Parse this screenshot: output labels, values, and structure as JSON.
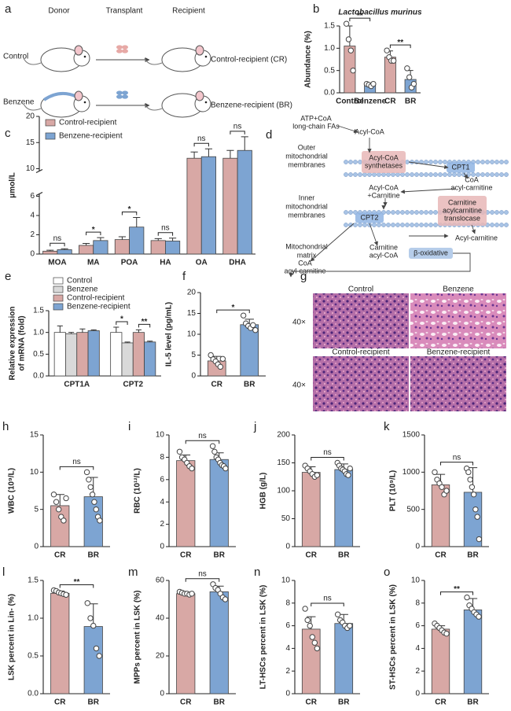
{
  "diagrams": {
    "a": {
      "label": "a",
      "headers": [
        "Donor",
        "Transplant",
        "Recipient"
      ],
      "rows": [
        {
          "group": "Control",
          "recipient": "Control-recipient (CR)"
        },
        {
          "group": "Benzene",
          "recipient": "Benzene-recipient (BR)"
        }
      ]
    },
    "d": {
      "label": "d",
      "layers": [
        [
          "Outer",
          "mitochondrial",
          "membranes"
        ],
        [
          "Inner",
          "mitochondrial",
          "membranes"
        ],
        [
          "Mitochondrial",
          "matrix"
        ]
      ],
      "nodes": [
        [
          "ATP+CoA",
          "long-chain FAs"
        ],
        [
          "Acyl-CoA"
        ],
        [
          "Acyl-CoA",
          "synthetases"
        ],
        [
          "CPT1"
        ],
        [
          "CoA",
          "acyl-carnitine"
        ],
        [
          "Acyl-CoA",
          "+Carnitine"
        ],
        [
          "Carnitine",
          "acylcarnitine",
          "translocase"
        ],
        [
          "CPT2"
        ],
        [
          "Acyl-carnitine"
        ],
        [
          "CoA",
          "acyl-carnitine"
        ],
        [
          "Carnitine",
          "acyl-CoA"
        ],
        [
          "β-oxidative"
        ]
      ]
    },
    "g": {
      "label": "g",
      "panels": [
        "Control",
        "Benzene",
        "Control-recipient",
        "Benzene-recipient"
      ],
      "magnification": [
        "40×",
        "40×"
      ]
    }
  },
  "chart_data": [
    {
      "label": "b",
      "type": "bar",
      "title": "Lactobacillus murinus",
      "y_label": "Abundance (%)",
      "categories": [
        "Control",
        "Benzene",
        "CR",
        "BR"
      ],
      "values": [
        1.05,
        0.18,
        0.8,
        0.3
      ],
      "errors": [
        0.45,
        0.03,
        0.14,
        0.2
      ],
      "points": [
        [
          1.55,
          1.2,
          0.95,
          0.5
        ],
        [
          0.2,
          0.18,
          0.15,
          0.2
        ],
        [
          0.95,
          0.8,
          0.72,
          0.72
        ],
        [
          0.55,
          0.35,
          0.12,
          0.2
        ]
      ],
      "colors": [
        "#d8a8a5",
        "#7da4d2",
        "#d8a8a5",
        "#7da4d2"
      ],
      "ylim": [
        0,
        1.5
      ],
      "yticks": [
        {
          "value": 0,
          "label": "0.0"
        },
        {
          "value": 0.5,
          "label": "0.5"
        },
        {
          "value": 1,
          "label": "1.0"
        },
        {
          "value": 1.5,
          "label": "1.5"
        }
      ],
      "significance": [
        "**",
        "**"
      ]
    },
    {
      "label": "c",
      "type": "bar",
      "y_label": "μmol/L",
      "categories": [
        "MOA",
        "MA",
        "POA",
        "HA",
        "OA",
        "DHA"
      ],
      "series": [
        {
          "name": "Control-recipient",
          "color": "#d8a8a5",
          "values": [
            0.3,
            0.9,
            1.5,
            1.4,
            12,
            12
          ],
          "errors": [
            0.1,
            0.2,
            0.3,
            0.2,
            1.2,
            1.5
          ]
        },
        {
          "name": "Benzene-recipient",
          "color": "#7da4d2",
          "values": [
            0.45,
            1.4,
            2.8,
            1.35,
            12.3,
            13.5
          ],
          "errors": [
            0.1,
            0.3,
            1.0,
            0.3,
            1.5,
            2.6
          ]
        }
      ],
      "ylim": [
        0,
        20
      ],
      "ybreak": [
        6,
        10
      ],
      "yticks": [
        0,
        2,
        4,
        6,
        10,
        15,
        20
      ],
      "significance": [
        "ns",
        "*",
        "*",
        "ns",
        "ns",
        "ns"
      ]
    },
    {
      "label": "e",
      "type": "bar",
      "y_label": [
        "Relative expression",
        "of mRNA (fold)"
      ],
      "categories": [
        "CPT1A",
        "CPT2"
      ],
      "series": [
        {
          "name": "Control",
          "color": "#ffffff",
          "values": [
            1.0,
            1.0
          ],
          "errors": [
            0.15,
            0.12
          ]
        },
        {
          "name": "Benzene",
          "color": "#d9d9d9",
          "values": [
            0.97,
            0.76
          ],
          "errors": [
            0.03,
            0.02
          ]
        },
        {
          "name": "Control-recipient",
          "color": "#d8a8a5",
          "values": [
            1.0,
            1.0
          ],
          "errors": [
            0.08,
            0.06
          ]
        },
        {
          "name": "Benzene-recipient",
          "color": "#7da4d2",
          "values": [
            1.04,
            0.78
          ],
          "errors": [
            0.02,
            0.02
          ]
        }
      ],
      "ylim": [
        0,
        1.5
      ],
      "yticks": [
        {
          "value": 0,
          "label": "0.0"
        },
        {
          "value": 0.5,
          "label": "0.5"
        },
        {
          "value": 1,
          "label": "1.0"
        },
        {
          "value": 1.5,
          "label": "1.5"
        }
      ],
      "significance": [
        "*",
        "**"
      ]
    },
    {
      "label": "f",
      "type": "bar",
      "y_label": "IL-5 level (pg/mL)",
      "categories": [
        "CR",
        "BR"
      ],
      "values": [
        3.6,
        12.3
      ],
      "errors": [
        1.1,
        1.3
      ],
      "points": [
        [
          5,
          4,
          3.5,
          2.8,
          2.2,
          4.1
        ],
        [
          14.5,
          12.6,
          12,
          11.5,
          12.2,
          11
        ]
      ],
      "colors": [
        "#d8a8a5",
        "#7da4d2"
      ],
      "ylim": [
        0,
        20
      ],
      "yticks": [
        0,
        5,
        10,
        15,
        20
      ],
      "significance": [
        "*"
      ]
    },
    {
      "label": "h",
      "type": "bar",
      "y_label": "WBC (10⁹/L)",
      "categories": [
        "CR",
        "BR"
      ],
      "values": [
        5.5,
        6.7
      ],
      "errors": [
        1.5,
        2.6
      ],
      "points": [
        [
          7,
          6,
          5,
          4,
          3.5,
          6.5
        ],
        [
          10,
          9,
          8,
          7,
          6,
          5,
          4,
          3.5
        ]
      ],
      "colors": [
        "#d8a8a5",
        "#7da4d2"
      ],
      "ylim": [
        0,
        15
      ],
      "yticks": [
        0,
        5,
        10,
        15
      ],
      "significance": [
        "ns"
      ]
    },
    {
      "label": "i",
      "type": "bar",
      "y_label": "RBC (10¹²/L)",
      "categories": [
        "CR",
        "BR"
      ],
      "values": [
        7.7,
        7.8
      ],
      "errors": [
        0.5,
        0.6
      ],
      "points": [
        [
          8.5,
          8,
          7.8,
          7.5,
          7.2,
          7
        ],
        [
          9,
          8.5,
          8,
          7.8,
          7.5,
          7.3,
          7.2,
          7
        ]
      ],
      "colors": [
        "#d8a8a5",
        "#7da4d2"
      ],
      "ylim": [
        0,
        10
      ],
      "yticks": [
        0,
        2,
        4,
        6,
        8,
        10
      ],
      "significance": [
        "ns"
      ]
    },
    {
      "label": "j",
      "type": "bar",
      "y_label": "HGB (g/L)",
      "categories": [
        "CR",
        "BR"
      ],
      "values": [
        133,
        138
      ],
      "errors": [
        10,
        10
      ],
      "points": [
        [
          145,
          140,
          135,
          130,
          125,
          128
        ],
        [
          150,
          145,
          140,
          138,
          135,
          130,
          128,
          140
        ]
      ],
      "colors": [
        "#d8a8a5",
        "#7da4d2"
      ],
      "ylim": [
        0,
        200
      ],
      "yticks": [
        0,
        50,
        100,
        150,
        200
      ],
      "significance": [
        "ns"
      ]
    },
    {
      "label": "k",
      "type": "bar",
      "y_label": "PLT (10⁹/L)",
      "categories": [
        "CR",
        "BR"
      ],
      "values": [
        830,
        730
      ],
      "errors": [
        140,
        330
      ],
      "points": [
        [
          1000,
          900,
          850,
          800,
          700,
          750
        ],
        [
          1050,
          1000,
          900,
          800,
          700,
          500,
          400,
          100
        ]
      ],
      "colors": [
        "#d8a8a5",
        "#7da4d2"
      ],
      "ylim": [
        0,
        1500
      ],
      "yticks": [
        0,
        500,
        1000,
        1500
      ],
      "significance": [
        "ns"
      ]
    },
    {
      "label": "l",
      "type": "bar",
      "y_label": "LSK percent in Lin- (%)",
      "categories": [
        "CR",
        "BR"
      ],
      "values": [
        1.33,
        0.89
      ],
      "errors": [
        0.03,
        0.3
      ],
      "points": [
        [
          1.37,
          1.36,
          1.34,
          1.33,
          1.32,
          1.31
        ],
        [
          1.2,
          1.0,
          0.9,
          0.6,
          0.5
        ]
      ],
      "colors": [
        "#d8a8a5",
        "#7da4d2"
      ],
      "ylim": [
        0,
        1.5
      ],
      "yticks": [
        {
          "value": 0,
          "label": "0.0"
        },
        {
          "value": 0.5,
          "label": "0.5"
        },
        {
          "value": 1,
          "label": "1.0"
        },
        {
          "value": 1.5,
          "label": "1.5"
        }
      ],
      "significance": [
        "**"
      ]
    },
    {
      "label": "m",
      "type": "bar",
      "y_label": "MPPs percent in LSK (%)",
      "categories": [
        "CR",
        "BR"
      ],
      "values": [
        53,
        54
      ],
      "errors": [
        0.6,
        3
      ],
      "points": [
        [
          54,
          53.5,
          53,
          53,
          52.5,
          53
        ],
        [
          58,
          56,
          55,
          53,
          51,
          50
        ]
      ],
      "colors": [
        "#d8a8a5",
        "#7da4d2"
      ],
      "ylim": [
        0,
        60
      ],
      "yticks": [
        0,
        20,
        40,
        60
      ],
      "significance": [
        "ns"
      ]
    },
    {
      "label": "n",
      "type": "bar",
      "y_label": "LT-HSCs percent in LSK (%)",
      "categories": [
        "CR",
        "BR"
      ],
      "values": [
        5.7,
        6.2
      ],
      "errors": [
        1.1,
        0.8
      ],
      "points": [
        [
          7.5,
          6.5,
          6,
          5,
          4.5,
          4
        ],
        [
          7,
          6.5,
          6.3,
          6,
          5.8,
          6
        ]
      ],
      "colors": [
        "#d8a8a5",
        "#7da4d2"
      ],
      "ylim": [
        0,
        10
      ],
      "yticks": [
        0,
        2,
        4,
        6,
        8,
        10
      ],
      "significance": [
        "ns"
      ]
    },
    {
      "label": "o",
      "type": "bar",
      "y_label": "ST-HSCs percent in LSK (%)",
      "categories": [
        "CR",
        "BR"
      ],
      "values": [
        5.7,
        7.4
      ],
      "errors": [
        0.3,
        1.0
      ],
      "points": [
        [
          6.2,
          6,
          5.8,
          5.6,
          5.4,
          5.3
        ],
        [
          8.5,
          7.8,
          7.5,
          7.2,
          7,
          6.8
        ]
      ],
      "colors": [
        "#d8a8a5",
        "#7da4d2"
      ],
      "ylim": [
        0,
        10
      ],
      "yticks": [
        0,
        2,
        4,
        6,
        8,
        10
      ],
      "significance": [
        "**"
      ]
    }
  ]
}
